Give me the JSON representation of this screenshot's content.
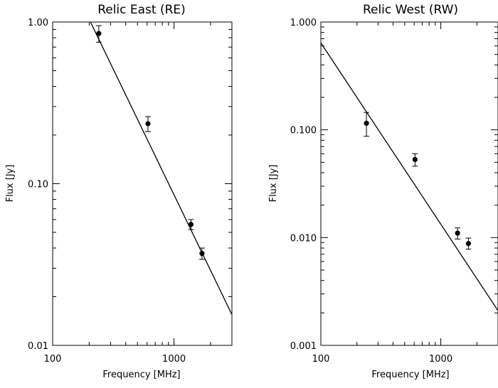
{
  "chart_data": [
    {
      "type": "scatter",
      "title": "Relic East (RE)",
      "xlabel": "Frequency [MHz]",
      "ylabel": "Flux [Jy]",
      "xscale": "log",
      "yscale": "log",
      "xlim": [
        100,
        3000
      ],
      "ylim": [
        0.01,
        1.0
      ],
      "x_tick_labels": [
        "100",
        "1000"
      ],
      "y_tick_labels": [
        "0.01",
        "0.10",
        "1.00"
      ],
      "grid": false,
      "points": [
        {
          "x": 240,
          "y": 0.85,
          "err_low": 0.75,
          "err_high": 0.95
        },
        {
          "x": 610,
          "y": 0.235,
          "err_low": 0.21,
          "err_high": 0.26
        },
        {
          "x": 1380,
          "y": 0.056,
          "err_low": 0.052,
          "err_high": 0.06
        },
        {
          "x": 1700,
          "y": 0.037,
          "err_low": 0.034,
          "err_high": 0.04
        }
      ],
      "fit_line": {
        "x": [
          205,
          3000
        ],
        "y": [
          1.0,
          0.0155
        ]
      }
    },
    {
      "type": "scatter",
      "title": "Relic West (RW)",
      "xlabel": "Frequency [MHz]",
      "ylabel": "Flux [Jy]",
      "xscale": "log",
      "yscale": "log",
      "xlim": [
        100,
        3000
      ],
      "ylim": [
        0.001,
        1.0
      ],
      "x_tick_labels": [
        "100",
        "1000"
      ],
      "y_tick_labels": [
        "0.001",
        "0.010",
        "0.100",
        "1.000"
      ],
      "grid": false,
      "points": [
        {
          "x": 240,
          "y": 0.115,
          "err_low": 0.087,
          "err_high": 0.145
        },
        {
          "x": 610,
          "y": 0.053,
          "err_low": 0.046,
          "err_high": 0.06
        },
        {
          "x": 1380,
          "y": 0.011,
          "err_low": 0.0097,
          "err_high": 0.0123
        },
        {
          "x": 1700,
          "y": 0.0088,
          "err_low": 0.0078,
          "err_high": 0.0099
        }
      ],
      "fit_line": {
        "x": [
          100,
          3000
        ],
        "y": [
          0.64,
          0.0021
        ]
      }
    }
  ]
}
